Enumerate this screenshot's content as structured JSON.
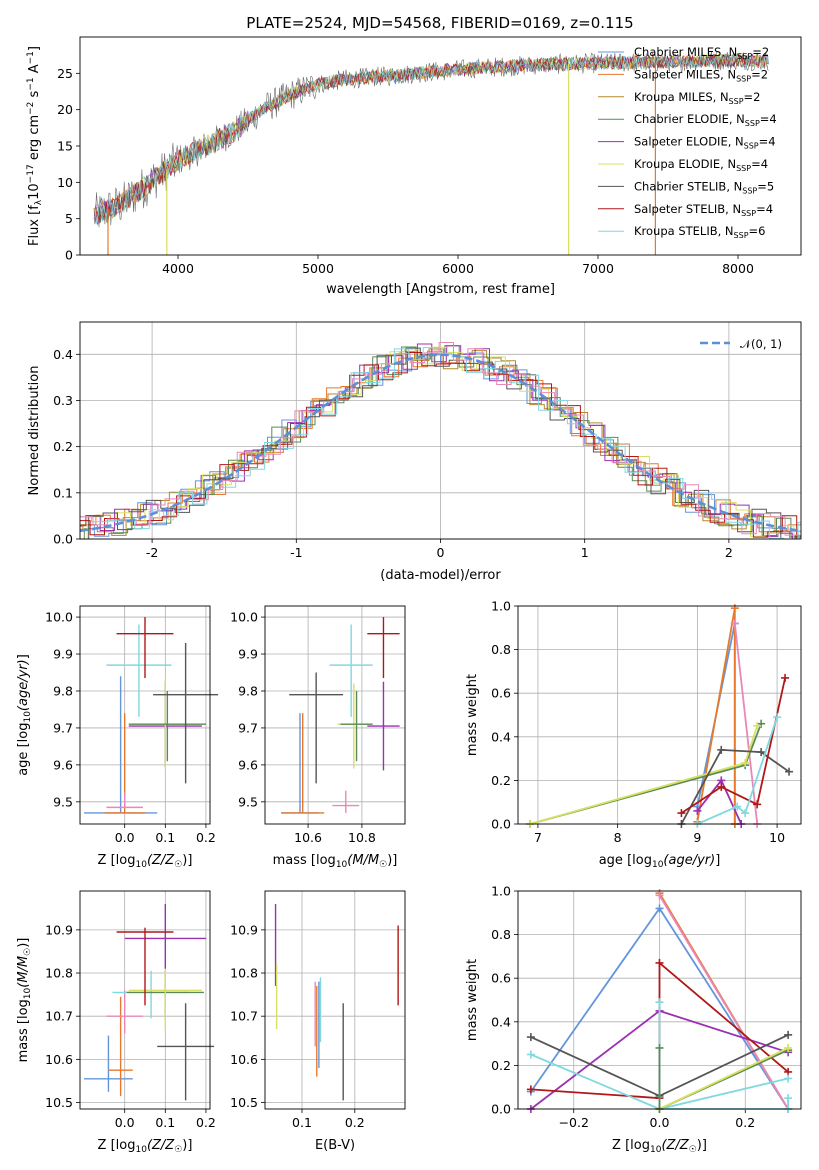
{
  "title": "PLATE=2524, MJD=54568, FIBERID=0169, z=0.115",
  "colors": {
    "Chabrier MILES": "#6495dc",
    "Salpeter MILES": "#e8792c",
    "Kroupa MILES": "#b5882a",
    "Chabrier ELODIE": "#5a8a5a",
    "Salpeter ELODIE": "#9b30b0",
    "Kroupa ELODIE": "#d8e060",
    "Chabrier STELIB": "#555555",
    "Salpeter STELIB": "#b01818",
    "Kroupa STELIB": "#80d8e0",
    "pink": "#e888b8",
    "gaussian": "#5b8fd8"
  },
  "chart_data": [
    {
      "id": "spectrum",
      "type": "line",
      "xlabel": "wavelength [Angstrom, rest frame]",
      "ylabel": "Flux [f_λ10^-17 erg cm^-2 s^-1 A^-1]",
      "xlim": [
        3300,
        8450
      ],
      "ylim": [
        0,
        30
      ],
      "xticks": [
        4000,
        5000,
        6000,
        7000,
        8000
      ],
      "yticks": [
        0,
        5,
        10,
        15,
        20,
        25
      ],
      "legend": "right",
      "legend_entries": [
        {
          "label": "Chabrier MILES, N",
          "sub": "SSP",
          "n": "=2",
          "color": "#6495dc"
        },
        {
          "label": "Salpeter MILES, N",
          "sub": "SSP",
          "n": "=2",
          "color": "#e8792c"
        },
        {
          "label": "Kroupa MILES, N",
          "sub": "SSP",
          "n": "=2",
          "color": "#b5882a"
        },
        {
          "label": "Chabrier ELODIE, N",
          "sub": "SSP",
          "n": "=4",
          "color": "#5a8a5a"
        },
        {
          "label": "Salpeter ELODIE, N",
          "sub": "SSP",
          "n": "=4",
          "color": "#9b30b0"
        },
        {
          "label": "Kroupa ELODIE, N",
          "sub": "SSP",
          "n": "=4",
          "color": "#d8e060"
        },
        {
          "label": "Chabrier STELIB, N",
          "sub": "SSP",
          "n": "=5",
          "color": "#555555"
        },
        {
          "label": "Salpeter STELIB, N",
          "sub": "SSP",
          "n": "=4",
          "color": "#b01818"
        },
        {
          "label": "Kroupa STELIB, N",
          "sub": "SSP",
          "n": "=6",
          "color": "#80d8e0"
        }
      ],
      "continuum": [
        [
          3400,
          5.5
        ],
        [
          3600,
          7
        ],
        [
          3800,
          10
        ],
        [
          4000,
          13
        ],
        [
          4200,
          15
        ],
        [
          4400,
          17
        ],
        [
          4600,
          20
        ],
        [
          4800,
          22
        ],
        [
          5000,
          23.5
        ],
        [
          5200,
          24.2
        ],
        [
          5400,
          24.5
        ],
        [
          5600,
          24.8
        ],
        [
          5800,
          25.2
        ],
        [
          6000,
          25.5
        ],
        [
          6200,
          25.8
        ],
        [
          6400,
          26
        ],
        [
          6600,
          26.2
        ],
        [
          6800,
          26.3
        ],
        [
          7000,
          26.4
        ],
        [
          7200,
          26.5
        ],
        [
          7400,
          26.5
        ],
        [
          7600,
          26.6
        ],
        [
          7800,
          26.8
        ],
        [
          8000,
          26.8
        ],
        [
          8200,
          26.7
        ]
      ],
      "dropouts": [
        {
          "x": 3500,
          "color": "#e8792c"
        },
        {
          "x": 3920,
          "color": "#d8e060"
        },
        {
          "x": 6790,
          "color": "#d8e060"
        },
        {
          "x": 7410,
          "color": "#e8792c"
        }
      ]
    },
    {
      "id": "residuals",
      "type": "histogram",
      "xlabel": "(data-model)/error",
      "ylabel": "Normed distribution",
      "xlim": [
        -2.5,
        2.5
      ],
      "ylim": [
        0,
        0.47
      ],
      "xticks": [
        -2,
        -1,
        0,
        1,
        2
      ],
      "yticks": [
        0.0,
        0.1,
        0.2,
        0.3,
        0.4
      ],
      "legend_label": "𝒩(0, 1)",
      "legend": "top-right",
      "grid": true
    },
    {
      "id": "age_vs_Z",
      "type": "errorbar",
      "xlabel": "Z [log₁₀(Z/Z☉)]",
      "ylabel": "age  [log₁₀(age/yr)]",
      "xlim": [
        -0.11,
        0.21
      ],
      "ylim": [
        9.44,
        10.03
      ],
      "xticks": [
        0.0,
        0.1,
        0.2
      ],
      "xticklabels": [
        "0.0",
        "0.1",
        "0.2"
      ],
      "yticks": [
        9.5,
        9.6,
        9.7,
        9.8,
        9.9,
        10.0
      ],
      "grid": true,
      "points": [
        {
          "x": -0.01,
          "xe": 0.09,
          "y": 9.47,
          "ye": [
            0.0,
            0.37
          ],
          "color": "#6495dc"
        },
        {
          "x": 0.0,
          "xe": 0.05,
          "y": 9.47,
          "ye": [
            0.0,
            0.27
          ],
          "color": "#e8792c"
        },
        {
          "x": 0.0,
          "xe": 0.045,
          "y": 9.485,
          "ye": [
            0.0,
            0.04
          ],
          "color": "#e888b8"
        },
        {
          "x": 0.035,
          "xe": 0.08,
          "y": 9.87,
          "ye": [
            0.14,
            0.11
          ],
          "color": "#80d8e0"
        },
        {
          "x": 0.05,
          "xe": 0.07,
          "y": 9.955,
          "ye": [
            0.12,
            0.045
          ],
          "color": "#b01818"
        },
        {
          "x": 0.1,
          "xe": 0.09,
          "y": 9.705,
          "ye": [
            0.11,
            0.12
          ],
          "color": "#9b30b0"
        },
        {
          "x": 0.1,
          "xe": 0.08,
          "y": 9.71,
          "ye": [
            0.12,
            0.12
          ],
          "color": "#d8e060"
        },
        {
          "x": 0.105,
          "xe": 0.095,
          "y": 9.71,
          "ye": [
            0.1,
            0.09
          ],
          "color": "#5a8a5a"
        },
        {
          "x": 0.15,
          "xe": 0.08,
          "y": 9.79,
          "ye": [
            0.24,
            0.14
          ],
          "color": "#555555"
        }
      ]
    },
    {
      "id": "age_vs_mass",
      "type": "errorbar",
      "xlabel": "mass [log₁₀(M/M☉)]",
      "ylabel": "",
      "xlim": [
        10.44,
        10.96
      ],
      "ylim": [
        9.44,
        10.03
      ],
      "xticks": [
        10.6,
        10.8
      ],
      "xticklabels": [
        "10.6",
        "10.8"
      ],
      "yticks": [
        9.5,
        9.6,
        9.7,
        9.8,
        9.9,
        10.0
      ],
      "grid": true,
      "points": [
        {
          "x": 10.57,
          "xe": 0.07,
          "y": 9.47,
          "ye": [
            0.0,
            0.27
          ],
          "color": "#6495dc"
        },
        {
          "x": 10.58,
          "xe": 0.08,
          "y": 9.47,
          "ye": [
            0.0,
            0.27
          ],
          "color": "#e8792c"
        },
        {
          "x": 10.74,
          "xe": 0.05,
          "y": 9.49,
          "ye": [
            0.02,
            0.04
          ],
          "color": "#e888b8"
        },
        {
          "x": 10.63,
          "xe": 0.1,
          "y": 9.79,
          "ye": [
            0.24,
            0.06
          ],
          "color": "#555555"
        },
        {
          "x": 10.76,
          "xe": 0.08,
          "y": 9.87,
          "ye": [
            0.14,
            0.11
          ],
          "color": "#80d8e0"
        },
        {
          "x": 10.88,
          "xe": 0.06,
          "y": 9.955,
          "ye": [
            0.12,
            0.045
          ],
          "color": "#b01818"
        },
        {
          "x": 10.77,
          "xe": 0.06,
          "y": 9.71,
          "ye": [
            0.12,
            0.11
          ],
          "color": "#d8e060"
        },
        {
          "x": 10.78,
          "xe": 0.06,
          "y": 9.71,
          "ye": [
            0.1,
            0.09
          ],
          "color": "#5a8a5a"
        },
        {
          "x": 10.88,
          "xe": 0.06,
          "y": 9.705,
          "ye": [
            0.12,
            0.12
          ],
          "color": "#9b30b0"
        }
      ]
    },
    {
      "id": "weight_vs_age",
      "type": "line",
      "xlabel": "age  [log₁₀(age/yr)]",
      "ylabel": "mass weight",
      "xlim": [
        6.75,
        10.3
      ],
      "ylim": [
        0.0,
        1.0
      ],
      "xticks": [
        7,
        8,
        9,
        10
      ],
      "yticks": [
        0.0,
        0.2,
        0.4,
        0.6,
        0.8,
        1.0
      ],
      "grid": true,
      "series": [
        {
          "color": "#6495dc",
          "x": [
            9.0,
            9.47,
            9.47
          ],
          "y": [
            0.08,
            0.92,
            0.0
          ]
        },
        {
          "color": "#e8792c",
          "x": [
            9.0,
            9.47,
            9.47
          ],
          "y": [
            0.01,
            0.99,
            0.0
          ]
        },
        {
          "color": "#e888b8",
          "x": [
            9.47,
            9.75
          ],
          "y": [
            0.92,
            0.0
          ]
        },
        {
          "color": "#5a8a5a",
          "x": [
            6.9,
            9.6,
            9.8
          ],
          "y": [
            0.0,
            0.27,
            0.46
          ]
        },
        {
          "color": "#d8e060",
          "x": [
            6.9,
            9.6,
            9.75
          ],
          "y": [
            0.0,
            0.28,
            0.45
          ]
        },
        {
          "color": "#9b30b0",
          "x": [
            9.0,
            9.3,
            9.55
          ],
          "y": [
            0.06,
            0.2,
            0.0
          ]
        },
        {
          "color": "#555555",
          "x": [
            8.8,
            9.3,
            9.8,
            10.15
          ],
          "y": [
            0.0,
            0.34,
            0.33,
            0.24
          ]
        },
        {
          "color": "#b01818",
          "x": [
            8.8,
            9.3,
            9.75,
            10.1
          ],
          "y": [
            0.05,
            0.17,
            0.09,
            0.67
          ]
        },
        {
          "color": "#80d8e0",
          "x": [
            9.0,
            9.5,
            9.6,
            10.0
          ],
          "y": [
            0.0,
            0.08,
            0.05,
            0.49
          ]
        }
      ]
    },
    {
      "id": "mass_vs_Z",
      "type": "errorbar",
      "xlabel": "Z [log₁₀(Z/Z☉)]",
      "ylabel": "mass [log₁₀(M/M☉)]",
      "xlim": [
        -0.11,
        0.21
      ],
      "ylim": [
        10.485,
        10.99
      ],
      "xticks": [
        0.0,
        0.1,
        0.2
      ],
      "xticklabels": [
        "0.0",
        "0.1",
        "0.2"
      ],
      "yticks": [
        10.5,
        10.6,
        10.7,
        10.8,
        10.9
      ],
      "grid": true,
      "points": [
        {
          "x": -0.04,
          "xe": 0.06,
          "y": 10.555,
          "ye": [
            0.03,
            0.1
          ],
          "color": "#6495dc"
        },
        {
          "x": -0.01,
          "xe": 0.03,
          "y": 10.575,
          "ye": [
            0.06,
            0.17
          ],
          "color": "#e8792c"
        },
        {
          "x": 0.0,
          "xe": 0.045,
          "y": 10.7,
          "ye": [
            0.04,
            0.06
          ],
          "color": "#e888b8"
        },
        {
          "x": 0.065,
          "xe": 0.095,
          "y": 10.755,
          "ye": [
            0.06,
            0.05
          ],
          "color": "#80d8e0"
        },
        {
          "x": 0.1,
          "xe": 0.095,
          "y": 10.755,
          "ye": [
            0.06,
            0.05
          ],
          "color": "#5a8a5a"
        },
        {
          "x": 0.1,
          "xe": 0.09,
          "y": 10.76,
          "ye": [
            0.09,
            0.06
          ],
          "color": "#d8e060"
        },
        {
          "x": 0.1,
          "xe": 0.1,
          "y": 10.88,
          "ye": [
            0.07,
            0.08
          ],
          "color": "#9b30b0"
        },
        {
          "x": 0.05,
          "xe": 0.07,
          "y": 10.895,
          "ye": [
            0.17,
            0.01
          ],
          "color": "#b01818"
        },
        {
          "x": 0.15,
          "xe": 0.07,
          "y": 10.63,
          "ye": [
            0.125,
            0.1
          ],
          "color": "#555555"
        }
      ]
    },
    {
      "id": "mass_vs_ebv",
      "type": "errorbar",
      "xlabel": "E(B-V)",
      "ylabel": "",
      "xlim": [
        0.03,
        0.295
      ],
      "ylim": [
        10.485,
        10.99
      ],
      "xticks": [
        0.1,
        0.2
      ],
      "xticklabels": [
        "0.1",
        "0.2"
      ],
      "yticks": [
        10.5,
        10.6,
        10.7,
        10.8,
        10.9
      ],
      "grid": true,
      "points": [
        {
          "x": 0.05,
          "y": 10.84,
          "ye": [
            0.07,
            0.12
          ],
          "color": "#9b30b0"
        },
        {
          "x": 0.052,
          "y": 10.76,
          "ye": [
            0.09,
            0.06
          ],
          "color": "#d8e060"
        },
        {
          "x": 0.125,
          "y": 10.7,
          "ye": [
            0.07,
            0.08
          ],
          "color": "#e888b8"
        },
        {
          "x": 0.128,
          "y": 10.66,
          "ye": [
            0.1,
            0.11
          ],
          "color": "#e8792c"
        },
        {
          "x": 0.135,
          "y": 10.7,
          "ye": [
            0.06,
            0.09
          ],
          "color": "#80d8e0"
        },
        {
          "x": 0.132,
          "y": 10.68,
          "ye": [
            0.1,
            0.1
          ],
          "color": "#6495dc"
        },
        {
          "x": 0.178,
          "y": 10.63,
          "ye": [
            0.125,
            0.1
          ],
          "color": "#555555"
        },
        {
          "x": 0.282,
          "y": 10.82,
          "ye": [
            0.095,
            0.09
          ],
          "color": "#b01818"
        }
      ]
    },
    {
      "id": "weight_vs_Z",
      "type": "line",
      "xlabel": "Z [log₁₀(Z/Z☉)]",
      "ylabel": "mass weight",
      "xlim": [
        -0.33,
        0.33
      ],
      "ylim": [
        0.0,
        1.0
      ],
      "xticks": [
        -0.2,
        0.0,
        0.2
      ],
      "xticklabels": [
        "−0.2",
        "0.0",
        "0.2"
      ],
      "yticks": [
        0.0,
        0.2,
        0.4,
        0.6,
        0.8,
        1.0
      ],
      "grid": true,
      "series": [
        {
          "color": "#6495dc",
          "x": [
            -0.3,
            0.0,
            0.3
          ],
          "y": [
            0.08,
            0.92,
            0.0
          ]
        },
        {
          "color": "#e8792c",
          "x": [
            0.0,
            0.3
          ],
          "y": [
            0.99,
            0.0
          ]
        },
        {
          "color": "#e888b8",
          "x": [
            0.0,
            0.3
          ],
          "y": [
            0.98,
            0.0
          ]
        },
        {
          "color": "#9b30b0",
          "x": [
            -0.3,
            0.0,
            0.3
          ],
          "y": [
            0.0,
            0.45,
            0.26
          ]
        },
        {
          "color": "#b01818",
          "x": [
            -0.3,
            0.0,
            0.0,
            0.3
          ],
          "y": [
            0.09,
            0.05,
            0.67,
            0.17
          ]
        },
        {
          "color": "#555555",
          "x": [
            -0.3,
            0.0,
            0.3
          ],
          "y": [
            0.33,
            0.06,
            0.34
          ]
        },
        {
          "color": "#80d8e0",
          "x": [
            -0.3,
            0.0,
            0.3
          ],
          "y": [
            0.25,
            0.0,
            0.14
          ]
        },
        {
          "color": "#80d8e0",
          "x": [
            0.0,
            0.0,
            0.3,
            0.3
          ],
          "y": [
            0.49,
            0.0,
            0.0,
            0.05
          ]
        },
        {
          "color": "#5a8a5a",
          "x": [
            0.0,
            0.3
          ],
          "y": [
            0.0,
            0.27
          ]
        },
        {
          "color": "#d8e060",
          "x": [
            0.0,
            0.3
          ],
          "y": [
            0.0,
            0.28
          ]
        },
        {
          "color": "#5a8a5a",
          "x": [
            0.0,
            0.0
          ],
          "y": [
            0.0,
            0.28
          ]
        }
      ]
    }
  ]
}
